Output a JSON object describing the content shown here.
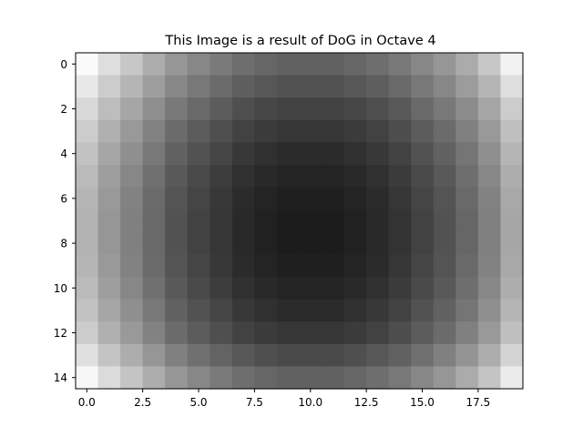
{
  "chart_data": {
    "type": "heatmap",
    "title": "This Image is a result of DoG in Octave 4",
    "xlabel": "",
    "ylabel": "",
    "colormap": "gray",
    "value_range": [
      0,
      1
    ],
    "x_ticks": [
      "0.0",
      "2.5",
      "5.0",
      "7.5",
      "10.0",
      "12.5",
      "15.0",
      "17.5"
    ],
    "y_ticks": [
      "0",
      "2",
      "4",
      "6",
      "8",
      "10",
      "12",
      "14"
    ],
    "xlim": [
      -0.5,
      19.5
    ],
    "ylim": [
      14.5,
      -0.5
    ],
    "grid": false,
    "values": [
      [
        0.98,
        0.87,
        0.78,
        0.68,
        0.59,
        0.53,
        0.48,
        0.43,
        0.4,
        0.38,
        0.38,
        0.38,
        0.4,
        0.43,
        0.47,
        0.53,
        0.59,
        0.67,
        0.78,
        0.95
      ],
      [
        0.91,
        0.8,
        0.71,
        0.62,
        0.53,
        0.47,
        0.42,
        0.37,
        0.34,
        0.32,
        0.32,
        0.32,
        0.34,
        0.37,
        0.41,
        0.47,
        0.53,
        0.61,
        0.71,
        0.87
      ],
      [
        0.85,
        0.74,
        0.65,
        0.56,
        0.47,
        0.41,
        0.36,
        0.31,
        0.28,
        0.26,
        0.26,
        0.26,
        0.28,
        0.31,
        0.35,
        0.41,
        0.47,
        0.55,
        0.65,
        0.8
      ],
      [
        0.8,
        0.69,
        0.6,
        0.51,
        0.42,
        0.36,
        0.31,
        0.26,
        0.23,
        0.21,
        0.21,
        0.21,
        0.23,
        0.26,
        0.3,
        0.36,
        0.42,
        0.5,
        0.6,
        0.75
      ],
      [
        0.76,
        0.65,
        0.56,
        0.47,
        0.38,
        0.32,
        0.27,
        0.22,
        0.19,
        0.17,
        0.17,
        0.17,
        0.19,
        0.22,
        0.26,
        0.32,
        0.38,
        0.46,
        0.56,
        0.71
      ],
      [
        0.73,
        0.62,
        0.53,
        0.44,
        0.35,
        0.29,
        0.24,
        0.19,
        0.16,
        0.14,
        0.14,
        0.14,
        0.16,
        0.19,
        0.23,
        0.29,
        0.35,
        0.43,
        0.53,
        0.68
      ],
      [
        0.71,
        0.6,
        0.51,
        0.42,
        0.33,
        0.27,
        0.22,
        0.17,
        0.14,
        0.12,
        0.12,
        0.12,
        0.14,
        0.17,
        0.21,
        0.27,
        0.33,
        0.41,
        0.51,
        0.66
      ],
      [
        0.7,
        0.59,
        0.5,
        0.41,
        0.32,
        0.26,
        0.21,
        0.16,
        0.13,
        0.11,
        0.11,
        0.11,
        0.13,
        0.16,
        0.2,
        0.26,
        0.32,
        0.4,
        0.5,
        0.65
      ],
      [
        0.7,
        0.59,
        0.5,
        0.41,
        0.32,
        0.26,
        0.21,
        0.16,
        0.13,
        0.11,
        0.11,
        0.11,
        0.13,
        0.16,
        0.2,
        0.26,
        0.32,
        0.4,
        0.5,
        0.65
      ],
      [
        0.71,
        0.6,
        0.51,
        0.42,
        0.33,
        0.27,
        0.22,
        0.17,
        0.14,
        0.12,
        0.12,
        0.12,
        0.14,
        0.17,
        0.21,
        0.27,
        0.33,
        0.41,
        0.51,
        0.66
      ],
      [
        0.73,
        0.62,
        0.53,
        0.44,
        0.35,
        0.29,
        0.24,
        0.19,
        0.16,
        0.14,
        0.14,
        0.14,
        0.16,
        0.19,
        0.23,
        0.29,
        0.35,
        0.43,
        0.53,
        0.68
      ],
      [
        0.76,
        0.65,
        0.56,
        0.47,
        0.38,
        0.32,
        0.27,
        0.22,
        0.19,
        0.17,
        0.17,
        0.17,
        0.19,
        0.22,
        0.26,
        0.32,
        0.38,
        0.46,
        0.56,
        0.71
      ],
      [
        0.8,
        0.69,
        0.6,
        0.51,
        0.42,
        0.36,
        0.31,
        0.26,
        0.23,
        0.21,
        0.21,
        0.21,
        0.23,
        0.26,
        0.3,
        0.36,
        0.42,
        0.5,
        0.6,
        0.75
      ],
      [
        0.88,
        0.77,
        0.68,
        0.59,
        0.5,
        0.44,
        0.39,
        0.34,
        0.31,
        0.29,
        0.29,
        0.29,
        0.31,
        0.34,
        0.38,
        0.44,
        0.5,
        0.58,
        0.68,
        0.83
      ],
      [
        0.97,
        0.86,
        0.77,
        0.68,
        0.59,
        0.53,
        0.48,
        0.43,
        0.4,
        0.38,
        0.38,
        0.38,
        0.4,
        0.43,
        0.47,
        0.53,
        0.59,
        0.67,
        0.77,
        0.92
      ]
    ]
  }
}
